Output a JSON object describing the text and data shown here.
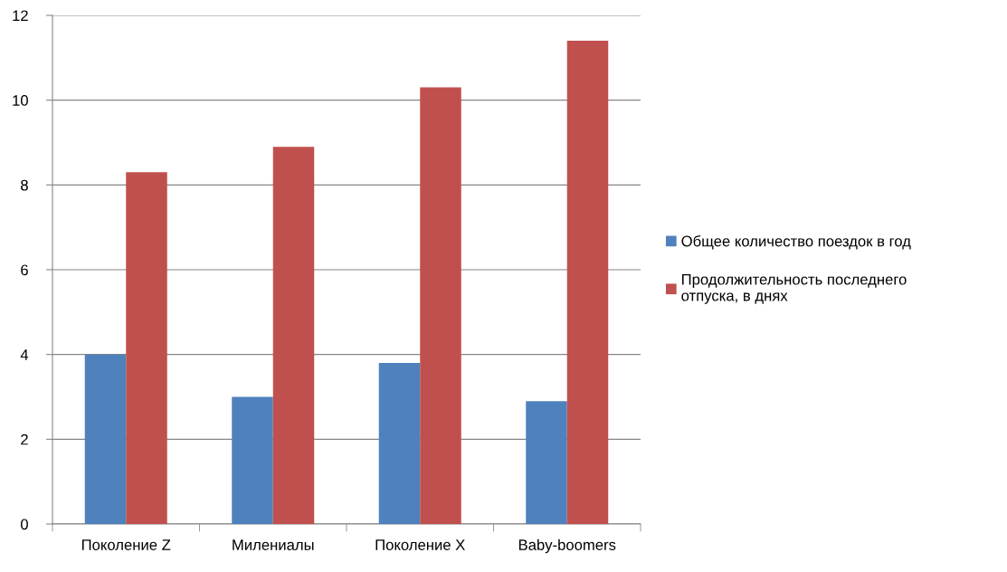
{
  "chart_data": {
    "type": "bar",
    "categories": [
      "Поколение Z",
      "Милениалы",
      "Поколение X",
      "Baby-boomers"
    ],
    "series": [
      {
        "name": "Общее количество поездок в год",
        "color": "#4f81bd",
        "values": [
          4.0,
          3.0,
          3.8,
          2.9
        ]
      },
      {
        "name": "Продолжительность последнего отпуска, в днях",
        "color": "#c0504d",
        "values": [
          8.3,
          8.9,
          10.3,
          11.4
        ]
      }
    ],
    "ylim": [
      0,
      12
    ],
    "yticks": [
      0,
      2,
      4,
      6,
      8,
      10,
      12
    ],
    "grid": "y",
    "legend": "right"
  }
}
